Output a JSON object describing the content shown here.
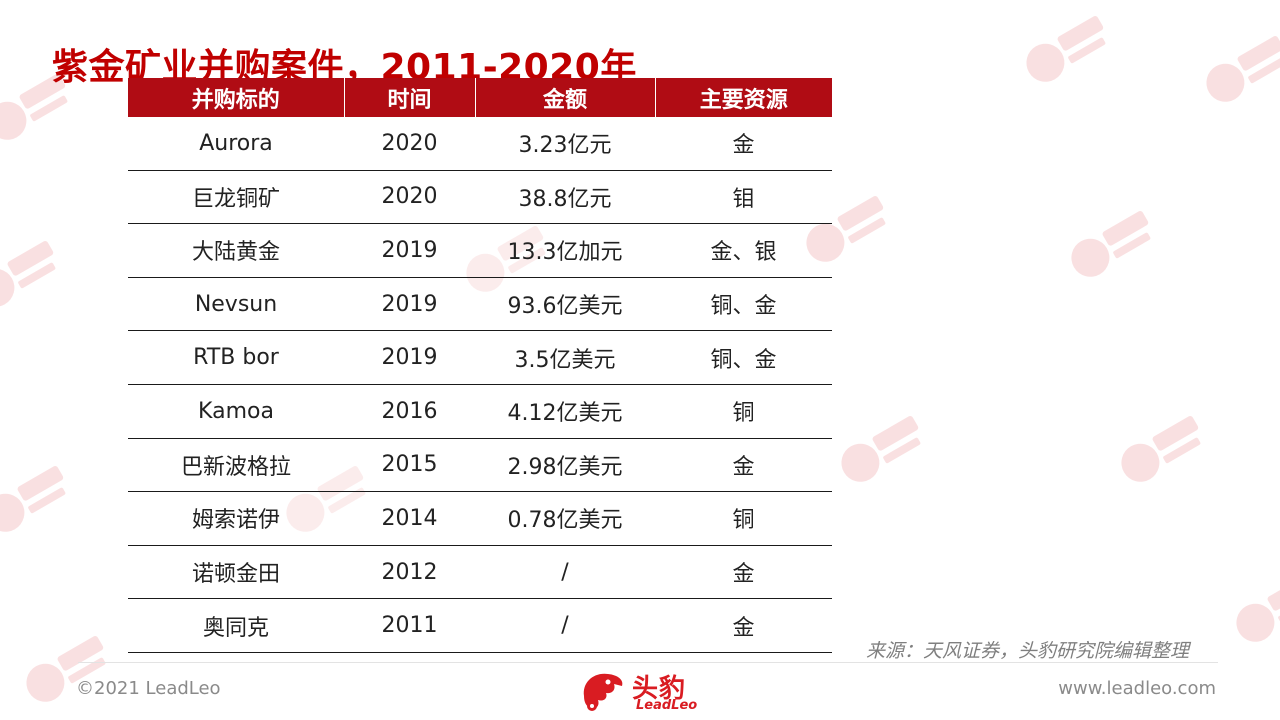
{
  "title": "紫金矿业并购案件，2011-2020年",
  "table": {
    "headers": [
      "并购标的",
      "时间",
      "金额",
      "主要资源"
    ],
    "rows": [
      [
        "Aurora",
        "2020",
        "3.23亿元",
        "金"
      ],
      [
        "巨龙铜矿",
        "2020",
        "38.8亿元",
        "钼"
      ],
      [
        "大陆黄金",
        "2019",
        "13.3亿加元",
        "金、银"
      ],
      [
        "Nevsun",
        "2019",
        "93.6亿美元",
        "铜、金"
      ],
      [
        "RTB bor",
        "2019",
        "3.5亿美元",
        "铜、金"
      ],
      [
        "Kamoa",
        "2016",
        "4.12亿美元",
        "铜"
      ],
      [
        "巴新波格拉",
        "2015",
        "2.98亿美元",
        "金"
      ],
      [
        "姆索诺伊",
        "2014",
        "0.78亿美元",
        "铜"
      ],
      [
        "诺顿金田",
        "2012",
        "/",
        "金"
      ],
      [
        "奥同克",
        "2011",
        "/",
        "金"
      ]
    ]
  },
  "source": "来源：天风证券，头豹研究院编辑整理",
  "footer": {
    "copyright": "©2021 LeadLeo",
    "website": "www.leadleo.com",
    "logo_cn": "头豹",
    "logo_en": "LeadLeo"
  },
  "colors": {
    "brand_red": "#c00000",
    "header_bg": "#b00c14",
    "logo_red": "#d91c22"
  },
  "icons": {
    "logo": "leopard-head-icon",
    "watermark": "leadleo-watermark"
  }
}
